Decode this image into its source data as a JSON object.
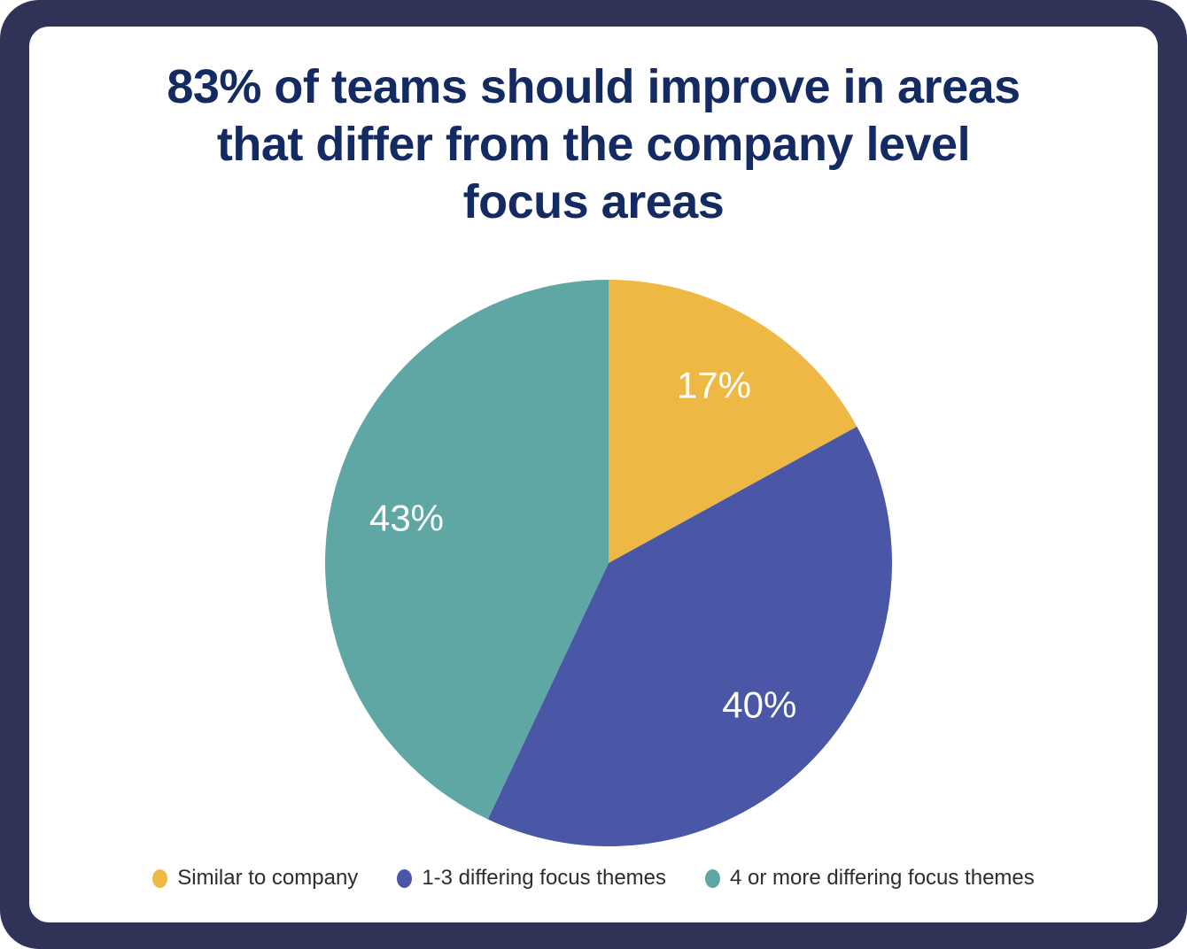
{
  "title": {
    "lines": [
      "83% of teams should improve in areas",
      "that differ from the company level",
      "focus areas"
    ]
  },
  "colors": {
    "frame_navy": "#2E3357",
    "card_background": "#FFFFFF",
    "title_navy": "#142A63",
    "slice_label_white": "#FFFFFF",
    "legend_text": "#2D2D2D"
  },
  "chart_data": {
    "type": "pie",
    "title": "83% of teams should improve in areas that differ from the company level focus areas",
    "start": "top",
    "direction": "clockwise",
    "legend_position": "bottom",
    "label_distance_ratio": 0.73,
    "slices": [
      {
        "label": "Similar to company",
        "value": 17,
        "display": "17%",
        "color": "#EEB844"
      },
      {
        "label": "1-3 differing focus themes",
        "value": 40,
        "display": "40%",
        "color": "#4A56A6"
      },
      {
        "label": "4 or more differing focus themes",
        "value": 43,
        "display": "43%",
        "color": "#5FA7A4"
      }
    ]
  }
}
